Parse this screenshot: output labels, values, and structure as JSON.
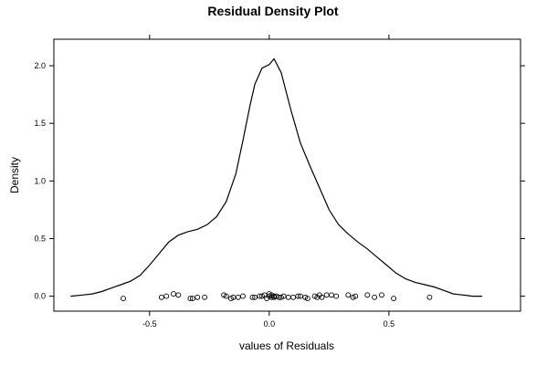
{
  "chart_data": {
    "type": "line",
    "title": "Residual Density Plot",
    "xlabel": "values of Residuals",
    "ylabel": "Density",
    "xlim": [
      -0.9,
      1.05
    ],
    "ylim": [
      -0.13,
      2.23
    ],
    "x_ticks": [
      -0.5,
      0.0,
      0.5
    ],
    "x_tick_labels": [
      "-0.5",
      "0.0",
      "0.5"
    ],
    "y_ticks": [
      0.0,
      0.5,
      1.0,
      1.5,
      2.0
    ],
    "y_tick_labels": [
      "0.0",
      "0.5",
      "1.0",
      "1.5",
      "2.0"
    ],
    "grid": false,
    "series": [
      {
        "x": [
          -0.83,
          -0.78,
          -0.74,
          -0.7,
          -0.66,
          -0.62,
          -0.58,
          -0.54,
          -0.5,
          -0.46,
          -0.42,
          -0.38,
          -0.34,
          -0.3,
          -0.26,
          -0.22,
          -0.18,
          -0.14,
          -0.11,
          -0.08,
          -0.06,
          -0.03,
          0.0,
          0.02,
          0.05,
          0.09,
          0.13,
          0.17,
          0.21,
          0.25,
          0.29,
          0.33,
          0.37,
          0.41,
          0.45,
          0.49,
          0.53,
          0.57,
          0.61,
          0.65,
          0.69,
          0.73,
          0.77,
          0.81,
          0.85,
          0.89
        ],
        "y": [
          0.0,
          0.01,
          0.02,
          0.04,
          0.07,
          0.1,
          0.13,
          0.18,
          0.27,
          0.37,
          0.47,
          0.53,
          0.56,
          0.58,
          0.62,
          0.69,
          0.82,
          1.06,
          1.35,
          1.66,
          1.84,
          1.98,
          2.01,
          2.06,
          1.94,
          1.62,
          1.33,
          1.13,
          0.94,
          0.75,
          0.62,
          0.54,
          0.47,
          0.41,
          0.34,
          0.27,
          0.2,
          0.15,
          0.12,
          0.1,
          0.08,
          0.05,
          0.02,
          0.01,
          0.0,
          0.0
        ]
      }
    ],
    "rug_points": {
      "x": [
        -0.61,
        -0.45,
        -0.43,
        -0.4,
        -0.38,
        -0.33,
        -0.32,
        -0.3,
        -0.27,
        -0.19,
        -0.18,
        -0.16,
        -0.15,
        -0.13,
        -0.11,
        -0.07,
        -0.06,
        -0.04,
        -0.03,
        -0.02,
        -0.01,
        0.0,
        0.0,
        0.01,
        0.01,
        0.02,
        0.02,
        0.03,
        0.04,
        0.05,
        0.06,
        0.08,
        0.1,
        0.12,
        0.13,
        0.15,
        0.16,
        0.19,
        0.2,
        0.21,
        0.22,
        0.24,
        0.26,
        0.28,
        0.33,
        0.35,
        0.36,
        0.41,
        0.44,
        0.47,
        0.52,
        0.67
      ],
      "y": [
        -0.02,
        -0.01,
        0.0,
        0.02,
        0.01,
        -0.02,
        -0.02,
        -0.01,
        -0.01,
        0.01,
        0.0,
        -0.02,
        -0.01,
        -0.01,
        0.0,
        -0.01,
        -0.01,
        0.0,
        0.0,
        0.01,
        -0.02,
        0.0,
        0.02,
        -0.01,
        0.01,
        -0.01,
        0.0,
        0.0,
        -0.01,
        -0.01,
        0.0,
        -0.01,
        -0.01,
        0.0,
        0.0,
        -0.01,
        -0.02,
        0.0,
        -0.01,
        0.01,
        -0.01,
        0.01,
        0.01,
        0.0,
        0.01,
        -0.01,
        0.0,
        0.01,
        -0.01,
        0.01,
        -0.02,
        -0.01
      ]
    }
  }
}
